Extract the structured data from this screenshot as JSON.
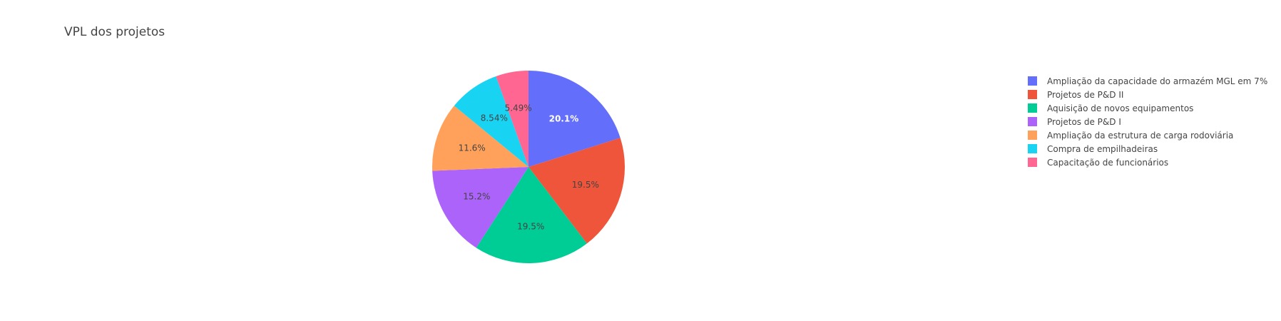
{
  "chart_data": {
    "type": "pie",
    "title": "VPL dos projetos",
    "legend_position": "right",
    "sort_order": "descending",
    "direction": "clockwise",
    "slices": [
      {
        "label": "Ampliação da capacidade do armazém MGL em 7%",
        "value": 20.1,
        "text": "20.1%",
        "color": "#636efa",
        "text_color": "#ffffff"
      },
      {
        "label": "Projetos de P&D II",
        "value": 19.5,
        "text": "19.5%",
        "color": "#EF553B",
        "text_color": "#444444"
      },
      {
        "label": "Aquisição de novos equipamentos",
        "value": 19.5,
        "text": "19.5%",
        "color": "#00cc96",
        "text_color": "#444444"
      },
      {
        "label": "Projetos de P&D I",
        "value": 15.2,
        "text": "15.2%",
        "color": "#ab63fa",
        "text_color": "#444444"
      },
      {
        "label": "Ampliação da estrutura de carga rodoviária",
        "value": 11.6,
        "text": "11.6%",
        "color": "#FFA15A",
        "text_color": "#444444"
      },
      {
        "label": "Compra de empilhadeiras",
        "value": 8.54,
        "text": "8.54%",
        "color": "#19d3f3",
        "text_color": "#444444"
      },
      {
        "label": "Capacitação de funcionários",
        "value": 5.49,
        "text": "5.49%",
        "color": "#FF6692",
        "text_color": "#444444"
      }
    ]
  }
}
